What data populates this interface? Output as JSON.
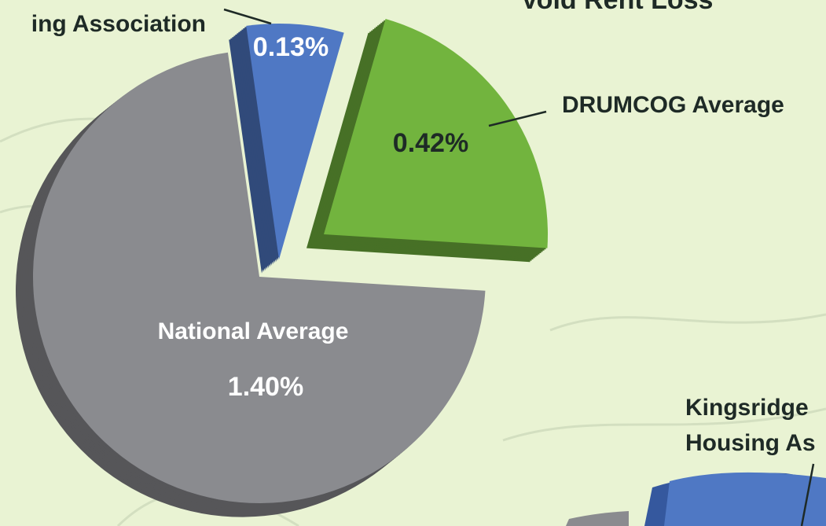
{
  "chart_data": {
    "type": "pie",
    "title": "Void Rent Loss",
    "categories": [
      "ing Association",
      "DRUMCOG Average",
      "National Average"
    ],
    "values": [
      0.13,
      0.42,
      1.4
    ],
    "value_labels": [
      "0.13%",
      "0.42%",
      "1.40%"
    ],
    "colors": [
      "#4f78c4",
      "#72b43e",
      "#8a8b8f"
    ],
    "annotations": [
      "Kingsridge",
      "Housing As"
    ]
  }
}
